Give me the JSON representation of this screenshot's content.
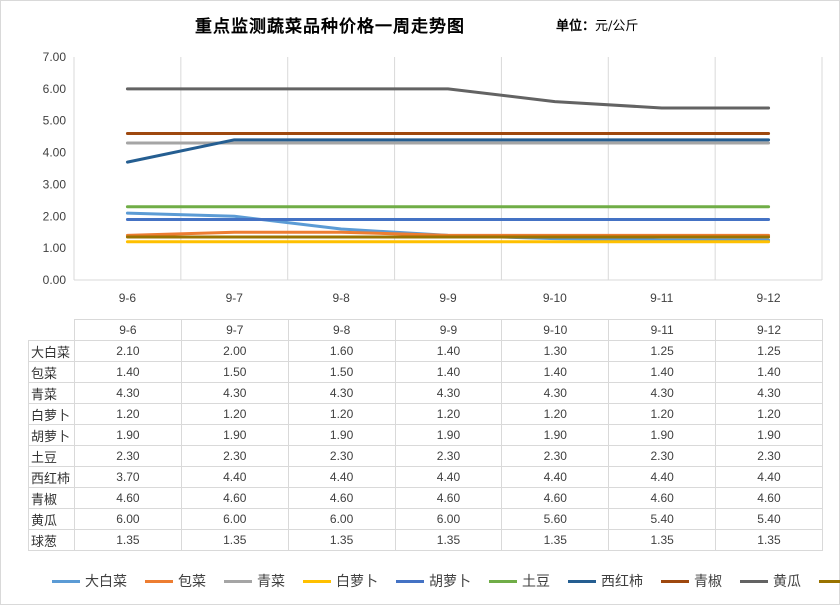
{
  "title": "重点监测蔬菜品种价格一周走势图",
  "unit": {
    "label": "单位：",
    "value": "元/公斤"
  },
  "chart_data": {
    "type": "line",
    "title": "重点监测蔬菜品种价格一周走势图",
    "categories": [
      "9-6",
      "9-7",
      "9-8",
      "9-9",
      "9-10",
      "9-11",
      "9-12"
    ],
    "ylim": [
      0,
      7
    ],
    "yticks": [
      "0.00",
      "1.00",
      "2.00",
      "3.00",
      "4.00",
      "5.00",
      "6.00",
      "7.00"
    ],
    "grid": "vertical category separators",
    "legend_position": "bottom",
    "series": [
      {
        "name": "大白菜",
        "color": "#5b9bd5",
        "values": [
          2.1,
          2.0,
          1.6,
          1.4,
          1.3,
          1.25,
          1.25
        ],
        "labels": [
          "2.10",
          "2.00",
          "1.60",
          "1.40",
          "1.30",
          "1.25",
          "1.25"
        ]
      },
      {
        "name": "包菜",
        "color": "#ed7d31",
        "values": [
          1.4,
          1.5,
          1.5,
          1.4,
          1.4,
          1.4,
          1.4
        ],
        "labels": [
          "1.40",
          "1.50",
          "1.50",
          "1.40",
          "1.40",
          "1.40",
          "1.40"
        ]
      },
      {
        "name": "青菜",
        "color": "#a5a5a5",
        "values": [
          4.3,
          4.3,
          4.3,
          4.3,
          4.3,
          4.3,
          4.3
        ],
        "labels": [
          "4.30",
          "4.30",
          "4.30",
          "4.30",
          "4.30",
          "4.30",
          "4.30"
        ]
      },
      {
        "name": "白萝卜",
        "color": "#ffc000",
        "values": [
          1.2,
          1.2,
          1.2,
          1.2,
          1.2,
          1.2,
          1.2
        ],
        "labels": [
          "1.20",
          "1.20",
          "1.20",
          "1.20",
          "1.20",
          "1.20",
          "1.20"
        ]
      },
      {
        "name": "胡萝卜",
        "color": "#4472c4",
        "values": [
          1.9,
          1.9,
          1.9,
          1.9,
          1.9,
          1.9,
          1.9
        ],
        "labels": [
          "1.90",
          "1.90",
          "1.90",
          "1.90",
          "1.90",
          "1.90",
          "1.90"
        ]
      },
      {
        "name": "土豆",
        "color": "#70ad47",
        "values": [
          2.3,
          2.3,
          2.3,
          2.3,
          2.3,
          2.3,
          2.3
        ],
        "labels": [
          "2.30",
          "2.30",
          "2.30",
          "2.30",
          "2.30",
          "2.30",
          "2.30"
        ]
      },
      {
        "name": "西红柿",
        "color": "#255e91",
        "values": [
          3.7,
          4.4,
          4.4,
          4.4,
          4.4,
          4.4,
          4.4
        ],
        "labels": [
          "3.70",
          "4.40",
          "4.40",
          "4.40",
          "4.40",
          "4.40",
          "4.40"
        ]
      },
      {
        "name": "青椒",
        "color": "#9e480e",
        "values": [
          4.6,
          4.6,
          4.6,
          4.6,
          4.6,
          4.6,
          4.6
        ],
        "labels": [
          "4.60",
          "4.60",
          "4.60",
          "4.60",
          "4.60",
          "4.60",
          "4.60"
        ]
      },
      {
        "name": "黄瓜",
        "color": "#636363",
        "values": [
          6.0,
          6.0,
          6.0,
          6.0,
          5.6,
          5.4,
          5.4
        ],
        "labels": [
          "6.00",
          "6.00",
          "6.00",
          "6.00",
          "5.60",
          "5.40",
          "5.40"
        ]
      },
      {
        "name": "球葱",
        "color": "#997300",
        "values": [
          1.35,
          1.35,
          1.35,
          1.35,
          1.35,
          1.35,
          1.35
        ],
        "labels": [
          "1.35",
          "1.35",
          "1.35",
          "1.35",
          "1.35",
          "1.35",
          "1.35"
        ]
      }
    ]
  }
}
